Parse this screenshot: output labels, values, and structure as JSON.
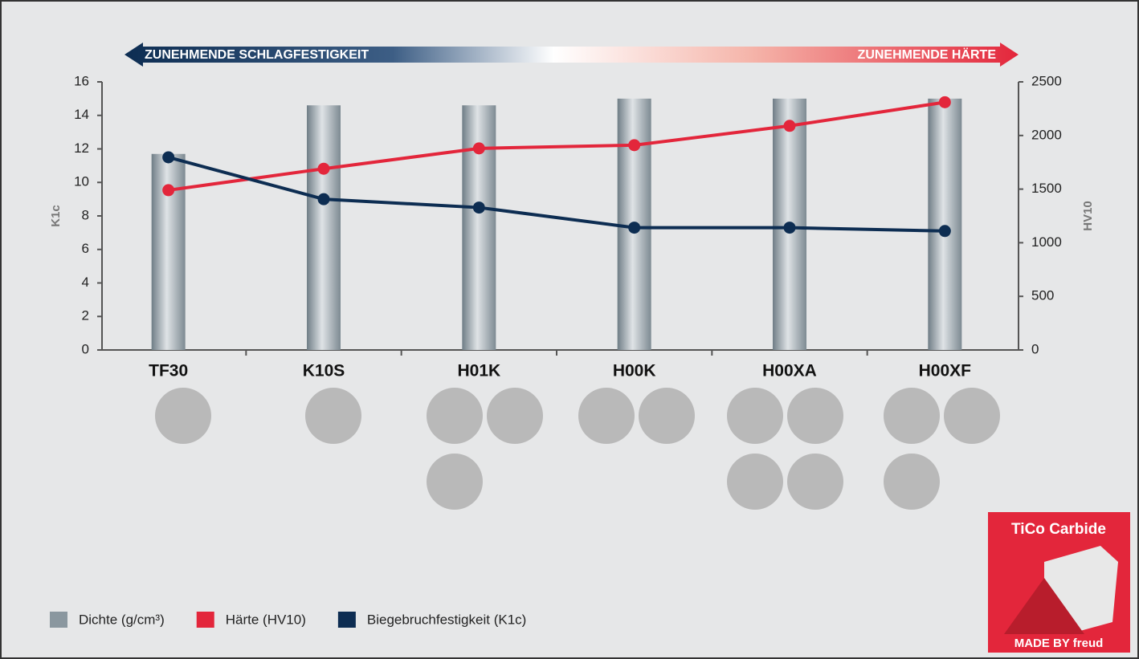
{
  "chart_data": {
    "type": "bar_line",
    "banner_left": "ZUNEHMENDE SCHLAGFESTIGKEIT",
    "banner_right": "ZUNEHMENDE HÄRTE",
    "ylabel": "K1c",
    "y2label": "HV10",
    "categories": [
      "TF30",
      "K10S",
      "H01K",
      "H00K",
      "H00XA",
      "H00XF"
    ],
    "ylim": [
      0,
      16
    ],
    "yticks": [
      0,
      2,
      4,
      6,
      8,
      10,
      12,
      14,
      16
    ],
    "y2lim": [
      0,
      2500
    ],
    "y2ticks": [
      0,
      500,
      1000,
      1500,
      2000,
      2500
    ],
    "series": [
      {
        "name": "Dichte (g/cm³)",
        "color": "#8a979f",
        "kind": "bar",
        "values": [
          11.7,
          14.6,
          14.6,
          15.0,
          15.0,
          15.0
        ]
      },
      {
        "name": "Härte (HV10)",
        "color": "#e3263b",
        "kind": "line",
        "axis": "y2",
        "values": [
          1490,
          1690,
          1880,
          1910,
          2090,
          2310
        ]
      },
      {
        "name": "Biegebruchfestigkeit (K1c)",
        "color": "#0d2d52",
        "kind": "line",
        "values": [
          11.5,
          9.0,
          8.5,
          7.3,
          7.3,
          7.1
        ]
      }
    ],
    "logo": {
      "top": "TiCo Carbide",
      "bottom": "MADE BY freud"
    }
  }
}
